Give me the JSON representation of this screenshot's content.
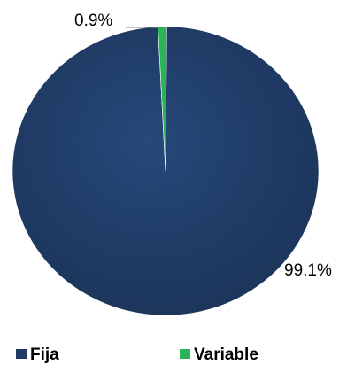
{
  "chart_data": {
    "type": "pie",
    "title": "",
    "slices": [
      {
        "label": "Fija",
        "value": 99.1,
        "display": "99.1%",
        "color": "#1f3b63"
      },
      {
        "label": "Variable",
        "value": 0.9,
        "display": "0.9%",
        "color": "#2bb457"
      }
    ],
    "legend": {
      "placement": "bottom",
      "entries": [
        "Fija",
        "Variable"
      ]
    }
  }
}
